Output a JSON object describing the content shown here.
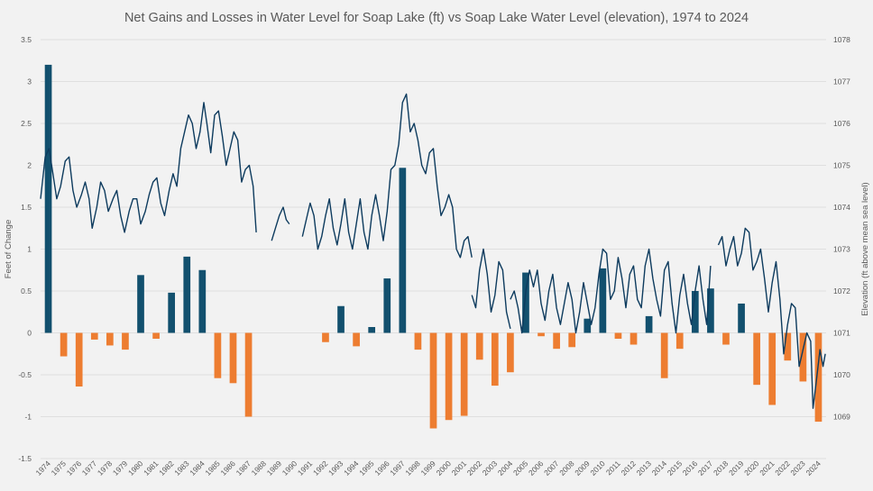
{
  "chart_data": {
    "type": "bar",
    "title": "Net Gains and Losses in Water Level for Soap Lake (ft) vs Soap Lake Water Level (elevation), 1974 to 2024",
    "ylabel": "Feet of Change",
    "y2label": "Elevation (ft above mean sea level)",
    "ylim": [
      -1.5,
      3.5
    ],
    "y2lim": [
      1068,
      1078
    ],
    "yticks": [
      "3.5",
      "3",
      "2.5",
      "2",
      "1.5",
      "1",
      "0.5",
      "0",
      "-0.5",
      "-1",
      "-1.5"
    ],
    "y2ticks": [
      "1078",
      "1077",
      "1076",
      "1075",
      "1074",
      "1073",
      "1072",
      "1071",
      "1070",
      "1069"
    ],
    "grid": true,
    "colors": {
      "gain": "#12506e",
      "loss": "#ed7d31",
      "elevation": "#0d3b5e",
      "grid": "#d9d9d9"
    },
    "categories": [
      "1974",
      "1975",
      "1976",
      "1977",
      "1978",
      "1979",
      "1980",
      "1981",
      "1982",
      "1983",
      "1984",
      "1985",
      "1986",
      "1987",
      "1988",
      "1989",
      "1990",
      "1991",
      "1992",
      "1993",
      "1994",
      "1995",
      "1996",
      "1997",
      "1998",
      "1999",
      "2000",
      "2001",
      "2002",
      "2003",
      "2004",
      "2005",
      "2006",
      "2007",
      "2008",
      "2009",
      "2010",
      "2011",
      "2012",
      "2013",
      "2014",
      "2015",
      "2016",
      "2017",
      "2018",
      "2019",
      "2020",
      "2021",
      "2022",
      "2023",
      "2024"
    ],
    "series": [
      {
        "type": "bar",
        "values": [
          3.2,
          -0.28,
          -0.64,
          -0.08,
          -0.15,
          -0.2,
          0.69,
          -0.07,
          0.48,
          0.91,
          0.75,
          -0.54,
          -0.6,
          -1.0,
          null,
          null,
          null,
          null,
          -0.11,
          0.32,
          -0.16,
          0.07,
          0.65,
          1.97,
          -0.2,
          -1.14,
          -1.04,
          -0.99,
          -0.32,
          -0.63,
          -0.47,
          0.72,
          -0.04,
          -0.19,
          -0.17,
          0.17,
          0.77,
          -0.07,
          -0.14,
          0.2,
          -0.54,
          -0.19,
          0.5,
          0.53,
          -0.14,
          0.35,
          -0.62,
          -0.86,
          -0.33,
          -0.58,
          -1.06
        ]
      },
      {
        "type": "line",
        "axis": "secondary",
        "segments": [
          [
            [
              1974.0,
              1074.2
            ],
            [
              1974.3,
              1075.2
            ],
            [
              1974.55,
              1075.4
            ],
            [
              1974.8,
              1074.8
            ],
            [
              1975.05,
              1074.2
            ],
            [
              1975.3,
              1074.5
            ],
            [
              1975.6,
              1075.1
            ],
            [
              1975.85,
              1075.2
            ],
            [
              1976.1,
              1074.4
            ],
            [
              1976.35,
              1074.0
            ],
            [
              1976.65,
              1074.3
            ],
            [
              1976.9,
              1074.6
            ],
            [
              1977.15,
              1074.2
            ],
            [
              1977.35,
              1073.5
            ],
            [
              1977.65,
              1074.0
            ],
            [
              1977.9,
              1074.6
            ],
            [
              1978.15,
              1074.4
            ],
            [
              1978.4,
              1073.9
            ],
            [
              1978.7,
              1074.2
            ],
            [
              1978.95,
              1074.4
            ],
            [
              1979.2,
              1073.8
            ],
            [
              1979.45,
              1073.4
            ],
            [
              1979.75,
              1073.9
            ],
            [
              1980.0,
              1074.2
            ],
            [
              1980.25,
              1074.2
            ],
            [
              1980.5,
              1073.6
            ],
            [
              1980.8,
              1073.9
            ],
            [
              1981.05,
              1074.3
            ],
            [
              1981.3,
              1074.6
            ],
            [
              1981.55,
              1074.7
            ],
            [
              1981.8,
              1074.1
            ],
            [
              1982.05,
              1073.8
            ],
            [
              1982.35,
              1074.4
            ],
            [
              1982.6,
              1074.8
            ],
            [
              1982.85,
              1074.5
            ],
            [
              1983.1,
              1075.4
            ],
            [
              1983.35,
              1075.8
            ],
            [
              1983.6,
              1076.2
            ],
            [
              1983.85,
              1076.0
            ],
            [
              1984.1,
              1075.4
            ],
            [
              1984.35,
              1075.8
            ],
            [
              1984.6,
              1076.5
            ],
            [
              1984.8,
              1076.0
            ],
            [
              1985.05,
              1075.3
            ],
            [
              1985.3,
              1076.2
            ],
            [
              1985.55,
              1076.3
            ],
            [
              1985.8,
              1075.7
            ],
            [
              1986.05,
              1075.0
            ],
            [
              1986.3,
              1075.4
            ],
            [
              1986.55,
              1075.8
            ],
            [
              1986.8,
              1075.6
            ],
            [
              1987.05,
              1074.6
            ],
            [
              1987.3,
              1074.9
            ],
            [
              1987.55,
              1075.0
            ],
            [
              1987.8,
              1074.5
            ],
            [
              1988.0,
              1073.4
            ]
          ],
          [
            [
              1989.0,
              1073.2
            ],
            [
              1989.25,
              1073.5
            ],
            [
              1989.5,
              1073.8
            ],
            [
              1989.75,
              1074.0
            ],
            [
              1989.95,
              1073.7
            ],
            [
              1990.15,
              1073.6
            ]
          ],
          [
            [
              1991.0,
              1073.3
            ],
            [
              1991.25,
              1073.7
            ],
            [
              1991.5,
              1074.1
            ],
            [
              1991.75,
              1073.8
            ],
            [
              1992.0,
              1073.0
            ],
            [
              1992.25,
              1073.3
            ],
            [
              1992.5,
              1073.8
            ],
            [
              1992.75,
              1074.2
            ],
            [
              1993.0,
              1073.5
            ],
            [
              1993.25,
              1073.1
            ],
            [
              1993.5,
              1073.6
            ],
            [
              1993.75,
              1074.2
            ],
            [
              1994.0,
              1073.4
            ],
            [
              1994.25,
              1073.0
            ],
            [
              1994.5,
              1073.6
            ],
            [
              1994.75,
              1074.2
            ],
            [
              1995.0,
              1073.4
            ],
            [
              1995.25,
              1073.0
            ],
            [
              1995.5,
              1073.8
            ],
            [
              1995.75,
              1074.3
            ],
            [
              1996.0,
              1073.8
            ],
            [
              1996.25,
              1073.2
            ],
            [
              1996.5,
              1073.9
            ],
            [
              1996.75,
              1074.9
            ],
            [
              1997.0,
              1075.0
            ],
            [
              1997.25,
              1075.5
            ],
            [
              1997.5,
              1076.5
            ],
            [
              1997.75,
              1076.7
            ],
            [
              1998.0,
              1075.8
            ],
            [
              1998.25,
              1076.0
            ],
            [
              1998.5,
              1075.6
            ],
            [
              1998.75,
              1075.0
            ],
            [
              1999.0,
              1074.8
            ],
            [
              1999.25,
              1075.3
            ],
            [
              1999.5,
              1075.4
            ],
            [
              1999.75,
              1074.5
            ],
            [
              2000.0,
              1073.8
            ],
            [
              2000.25,
              1074.0
            ],
            [
              2000.5,
              1074.3
            ],
            [
              2000.75,
              1074.0
            ],
            [
              2001.0,
              1073.0
            ],
            [
              2001.25,
              1072.8
            ],
            [
              2001.5,
              1073.2
            ],
            [
              2001.75,
              1073.3
            ],
            [
              2002.0,
              1072.8
            ]
          ],
          [
            [
              2002.0,
              1071.9
            ],
            [
              2002.25,
              1071.6
            ],
            [
              2002.5,
              1072.5
            ],
            [
              2002.75,
              1073.0
            ],
            [
              2003.0,
              1072.4
            ],
            [
              2003.25,
              1071.5
            ],
            [
              2003.5,
              1071.9
            ],
            [
              2003.75,
              1072.7
            ],
            [
              2004.0,
              1072.5
            ],
            [
              2004.25,
              1071.5
            ],
            [
              2004.5,
              1071.1
            ]
          ],
          [
            [
              2004.5,
              1071.8
            ],
            [
              2004.75,
              1072.0
            ],
            [
              2005.0,
              1071.6
            ],
            [
              2005.25,
              1071.0
            ],
            [
              2005.5,
              1072.0
            ],
            [
              2005.75,
              1072.5
            ],
            [
              2006.0,
              1072.1
            ],
            [
              2006.25,
              1072.5
            ],
            [
              2006.5,
              1071.7
            ],
            [
              2006.75,
              1071.3
            ],
            [
              2007.0,
              1072.0
            ],
            [
              2007.25,
              1072.4
            ],
            [
              2007.5,
              1071.6
            ],
            [
              2007.75,
              1071.2
            ],
            [
              2008.0,
              1071.7
            ],
            [
              2008.25,
              1072.2
            ],
            [
              2008.5,
              1071.8
            ],
            [
              2008.75,
              1071.0
            ],
            [
              2009.0,
              1071.5
            ],
            [
              2009.25,
              1072.2
            ],
            [
              2009.5,
              1071.7
            ],
            [
              2009.75,
              1071.2
            ],
            [
              2010.0,
              1071.6
            ],
            [
              2010.25,
              1072.4
            ],
            [
              2010.5,
              1073.0
            ],
            [
              2010.75,
              1072.9
            ],
            [
              2011.0,
              1071.8
            ],
            [
              2011.25,
              1072.0
            ],
            [
              2011.5,
              1072.8
            ],
            [
              2011.75,
              1072.3
            ],
            [
              2012.0,
              1071.6
            ],
            [
              2012.25,
              1072.4
            ],
            [
              2012.5,
              1072.6
            ],
            [
              2012.75,
              1071.8
            ],
            [
              2013.0,
              1071.6
            ],
            [
              2013.25,
              1072.6
            ],
            [
              2013.5,
              1073.0
            ],
            [
              2013.75,
              1072.3
            ],
            [
              2014.0,
              1071.8
            ],
            [
              2014.25,
              1071.4
            ],
            [
              2014.5,
              1072.5
            ],
            [
              2014.75,
              1072.7
            ],
            [
              2015.0,
              1071.7
            ],
            [
              2015.25,
              1071.0
            ],
            [
              2015.5,
              1071.9
            ],
            [
              2015.75,
              1072.4
            ],
            [
              2016.0,
              1071.7
            ],
            [
              2016.25,
              1071.2
            ],
            [
              2016.5,
              1072.0
            ],
            [
              2016.75,
              1072.6
            ],
            [
              2017.0,
              1071.8
            ],
            [
              2017.25,
              1071.2
            ],
            [
              2017.5,
              1072.6
            ]
          ],
          [
            [
              2018.0,
              1073.1
            ],
            [
              2018.25,
              1073.3
            ],
            [
              2018.5,
              1072.6
            ],
            [
              2018.75,
              1073.0
            ],
            [
              2019.0,
              1073.3
            ],
            [
              2019.25,
              1072.6
            ],
            [
              2019.5,
              1072.9
            ],
            [
              2019.75,
              1073.5
            ],
            [
              2020.0,
              1073.4
            ],
            [
              2020.25,
              1072.5
            ],
            [
              2020.5,
              1072.7
            ],
            [
              2020.75,
              1073.0
            ],
            [
              2021.0,
              1072.3
            ],
            [
              2021.25,
              1071.5
            ],
            [
              2021.5,
              1072.2
            ],
            [
              2021.75,
              1072.7
            ],
            [
              2022.0,
              1071.8
            ],
            [
              2022.25,
              1070.5
            ],
            [
              2022.5,
              1071.2
            ],
            [
              2022.75,
              1071.7
            ],
            [
              2023.0,
              1071.6
            ],
            [
              2023.25,
              1070.2
            ],
            [
              2023.5,
              1070.6
            ],
            [
              2023.75,
              1071.0
            ],
            [
              2024.0,
              1070.8
            ],
            [
              2024.15,
              1069.2
            ],
            [
              2024.35,
              1069.8
            ],
            [
              2024.6,
              1070.6
            ],
            [
              2024.8,
              1070.2
            ],
            [
              2024.95,
              1070.5
            ]
          ]
        ]
      }
    ]
  }
}
